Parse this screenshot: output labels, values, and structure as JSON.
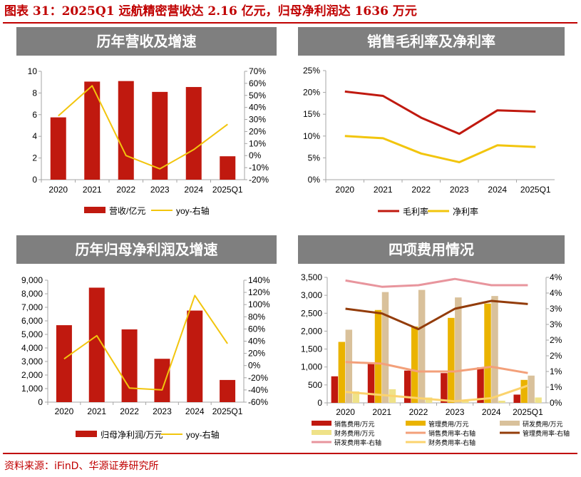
{
  "figure": {
    "title": "图表 31：2025Q1 远航精密营收达 2.16 亿元，归母净利润达 1636 万元",
    "source": "资料来源：iFinD、华源证券研究所",
    "colors": {
      "red": "#c0190f",
      "yellow": "#f2c50d",
      "gray": "#7f7f7f",
      "accent": "#c00000"
    }
  },
  "chart_data": [
    {
      "type": "bar",
      "title": "历年营收及增速",
      "categories": [
        "2020",
        "2021",
        "2022",
        "2023",
        "2024",
        "2025Q1"
      ],
      "ylim": [
        0,
        10
      ],
      "yticks": [
        "0",
        "2",
        "4",
        "6",
        "8",
        "10"
      ],
      "y2lim": [
        -20,
        70
      ],
      "y2ticks": [
        "-20%",
        "-10%",
        "0%",
        "10%",
        "20%",
        "30%",
        "40%",
        "50%",
        "60%",
        "70%"
      ],
      "series": [
        {
          "name": "营收/亿元",
          "kind": "bar",
          "axis": "left",
          "color": "#c0190f",
          "values": [
            5.75,
            9.05,
            9.1,
            8.1,
            8.55,
            2.16
          ]
        },
        {
          "name": "yoy-右轴",
          "kind": "line",
          "axis": "right",
          "color": "#f2c50d",
          "values": [
            33,
            58,
            0,
            -11,
            5,
            26
          ]
        }
      ]
    },
    {
      "type": "line",
      "title": "销售毛利率及净利率",
      "categories": [
        "2020",
        "2021",
        "2022",
        "2023",
        "2024",
        "2025Q1"
      ],
      "ylim": [
        0,
        25
      ],
      "yticks": [
        "0%",
        "5%",
        "10%",
        "15%",
        "20%",
        "25%"
      ],
      "series": [
        {
          "name": "毛利率",
          "kind": "line",
          "color": "#c0190f",
          "values": [
            20.2,
            19.2,
            14.2,
            10.5,
            15.9,
            15.6
          ]
        },
        {
          "name": "净利率",
          "kind": "line",
          "color": "#f2c50d",
          "values": [
            10.0,
            9.5,
            6.0,
            4.0,
            7.9,
            7.5
          ]
        }
      ]
    },
    {
      "type": "bar",
      "title": "历年归母净利润及增速",
      "categories": [
        "2020",
        "2021",
        "2022",
        "2023",
        "2024",
        "2025Q1"
      ],
      "ylim": [
        0,
        9000
      ],
      "yticks": [
        "0",
        "1,000",
        "2,000",
        "3,000",
        "4,000",
        "5,000",
        "6,000",
        "7,000",
        "8,000",
        "9,000"
      ],
      "y2lim": [
        -60,
        140
      ],
      "y2ticks": [
        "-60%",
        "-40%",
        "-20%",
        "0%",
        "20%",
        "40%",
        "60%",
        "80%",
        "100%",
        "120%",
        "140%"
      ],
      "series": [
        {
          "name": "归母净利润/万元",
          "kind": "bar",
          "axis": "left",
          "color": "#c0190f",
          "values": [
            5680,
            8450,
            5370,
            3200,
            6760,
            1636
          ]
        },
        {
          "name": "yoy-右轴",
          "kind": "line",
          "axis": "right",
          "color": "#f2c50d",
          "values": [
            11,
            49,
            -37,
            -40,
            115,
            36
          ]
        }
      ]
    },
    {
      "type": "bar",
      "title": "四项费用情况",
      "categories": [
        "2020",
        "2021",
        "2022",
        "2023",
        "2024",
        "2025Q1"
      ],
      "ylim": [
        0,
        3500
      ],
      "yticks": [
        "0",
        "500",
        "1,000",
        "1,500",
        "2,000",
        "2,500",
        "3,000",
        "3,500"
      ],
      "y2lim": [
        0,
        4
      ],
      "y2ticks": [
        "0%",
        "1%",
        "1%",
        "2%",
        "2%",
        "3%",
        "3%",
        "4%",
        "4%"
      ],
      "series": [
        {
          "name": "销售费用/万元",
          "kind": "bar",
          "axis": "left",
          "color": "#c0190f",
          "values": [
            740,
            1130,
            900,
            830,
            990,
            230
          ]
        },
        {
          "name": "管理费用/万元",
          "kind": "bar",
          "axis": "left",
          "color": "#eab300",
          "values": [
            1700,
            2590,
            2130,
            2370,
            2770,
            640
          ]
        },
        {
          "name": "研发费用/万元",
          "kind": "bar",
          "axis": "left",
          "color": "#d9c19b",
          "values": [
            2040,
            3090,
            3150,
            2940,
            2980,
            760
          ]
        },
        {
          "name": "财务费用/万元",
          "kind": "bar",
          "axis": "left",
          "color": "#efe288",
          "values": [
            320,
            380,
            150,
            80,
            60,
            150
          ]
        },
        {
          "name": "销售费用率-右轴",
          "kind": "line",
          "axis": "right",
          "color": "#f3a07a",
          "values": [
            1.3,
            1.25,
            1.0,
            1.0,
            1.15,
            0.95
          ]
        },
        {
          "name": "管理费用率-右轴",
          "kind": "line",
          "axis": "right",
          "color": "#933c0a",
          "values": [
            3.0,
            2.85,
            2.35,
            3.0,
            3.25,
            3.15
          ]
        },
        {
          "name": "研发费用率-右轴",
          "kind": "line",
          "axis": "right",
          "color": "#e8959d",
          "values": [
            3.9,
            3.7,
            3.75,
            3.95,
            3.75,
            3.75
          ]
        },
        {
          "name": "财务费用率-右轴",
          "kind": "line",
          "axis": "right",
          "color": "#fbd36e",
          "values": [
            0.35,
            0.25,
            0.15,
            0.05,
            0.15,
            0.55
          ]
        }
      ]
    }
  ]
}
